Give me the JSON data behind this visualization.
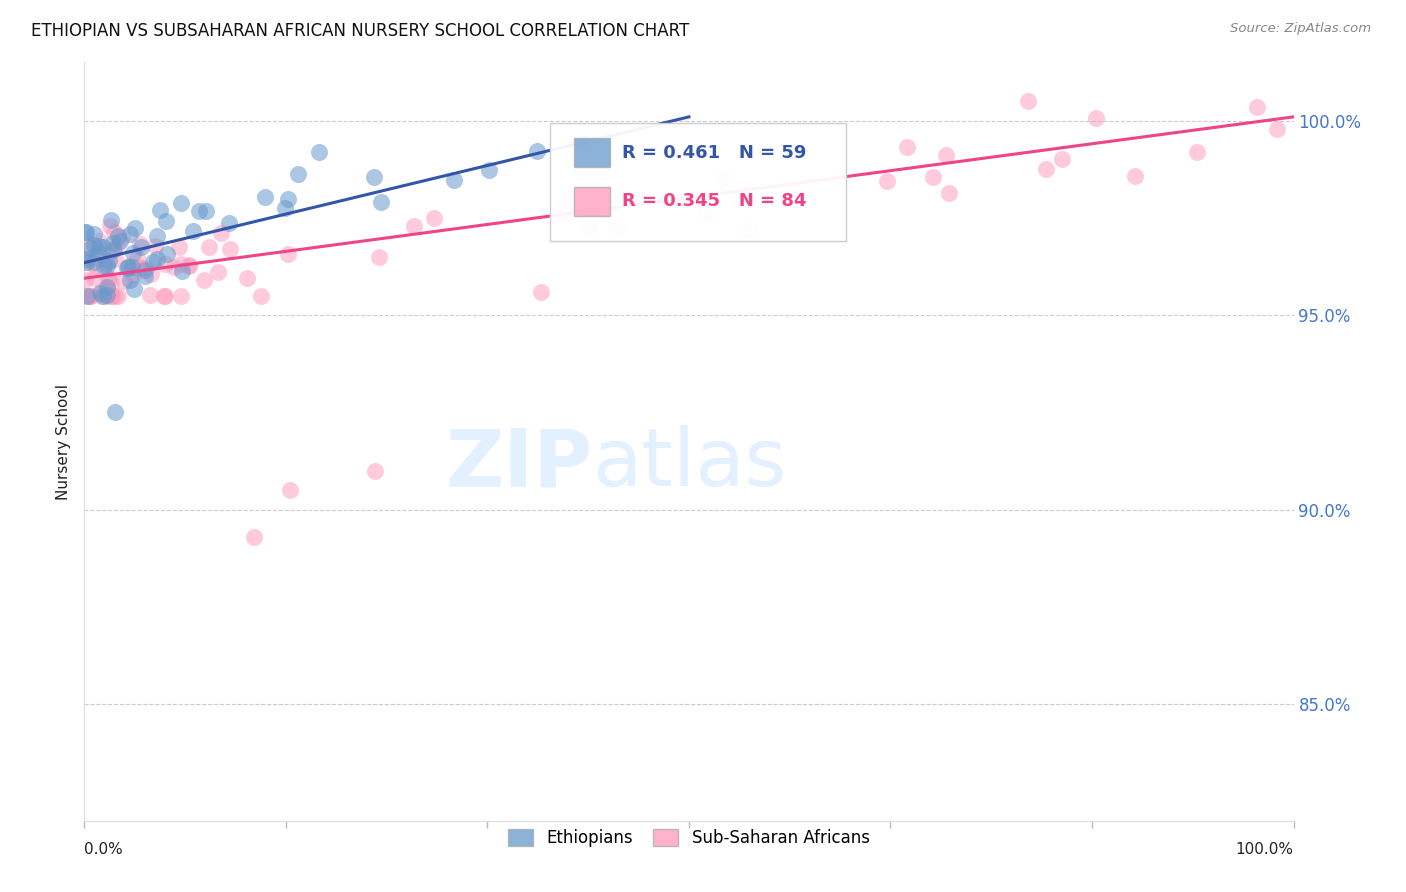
{
  "title": "ETHIOPIAN VS SUBSAHARAN AFRICAN NURSERY SCHOOL CORRELATION CHART",
  "source": "Source: ZipAtlas.com",
  "ylabel": "Nursery School",
  "ytick_labels": [
    "100.0%",
    "95.0%",
    "90.0%",
    "85.0%"
  ],
  "ytick_values": [
    1.0,
    0.95,
    0.9,
    0.85
  ],
  "xlim": [
    0.0,
    1.0
  ],
  "ylim": [
    0.82,
    1.015
  ],
  "ethiopian_color": "#6699CC",
  "subsaharan_color": "#FF99BB",
  "trendline_ethiopian_color": "#3355AA",
  "trendline_subsaharan_color": "#EE4488",
  "watermark_zip": "ZIP",
  "watermark_atlas": "atlas",
  "eth_R": "0.461",
  "eth_N": "59",
  "sub_R": "0.345",
  "sub_N": "84",
  "legend_label_eth": "Ethiopians",
  "legend_label_sub": "Sub-Saharan Africans",
  "eth_trendline_x": [
    0.0,
    0.5
  ],
  "eth_trendline_y": [
    0.9635,
    1.001
  ],
  "sub_trendline_x": [
    0.0,
    1.0
  ],
  "sub_trendline_y": [
    0.9595,
    1.001
  ]
}
